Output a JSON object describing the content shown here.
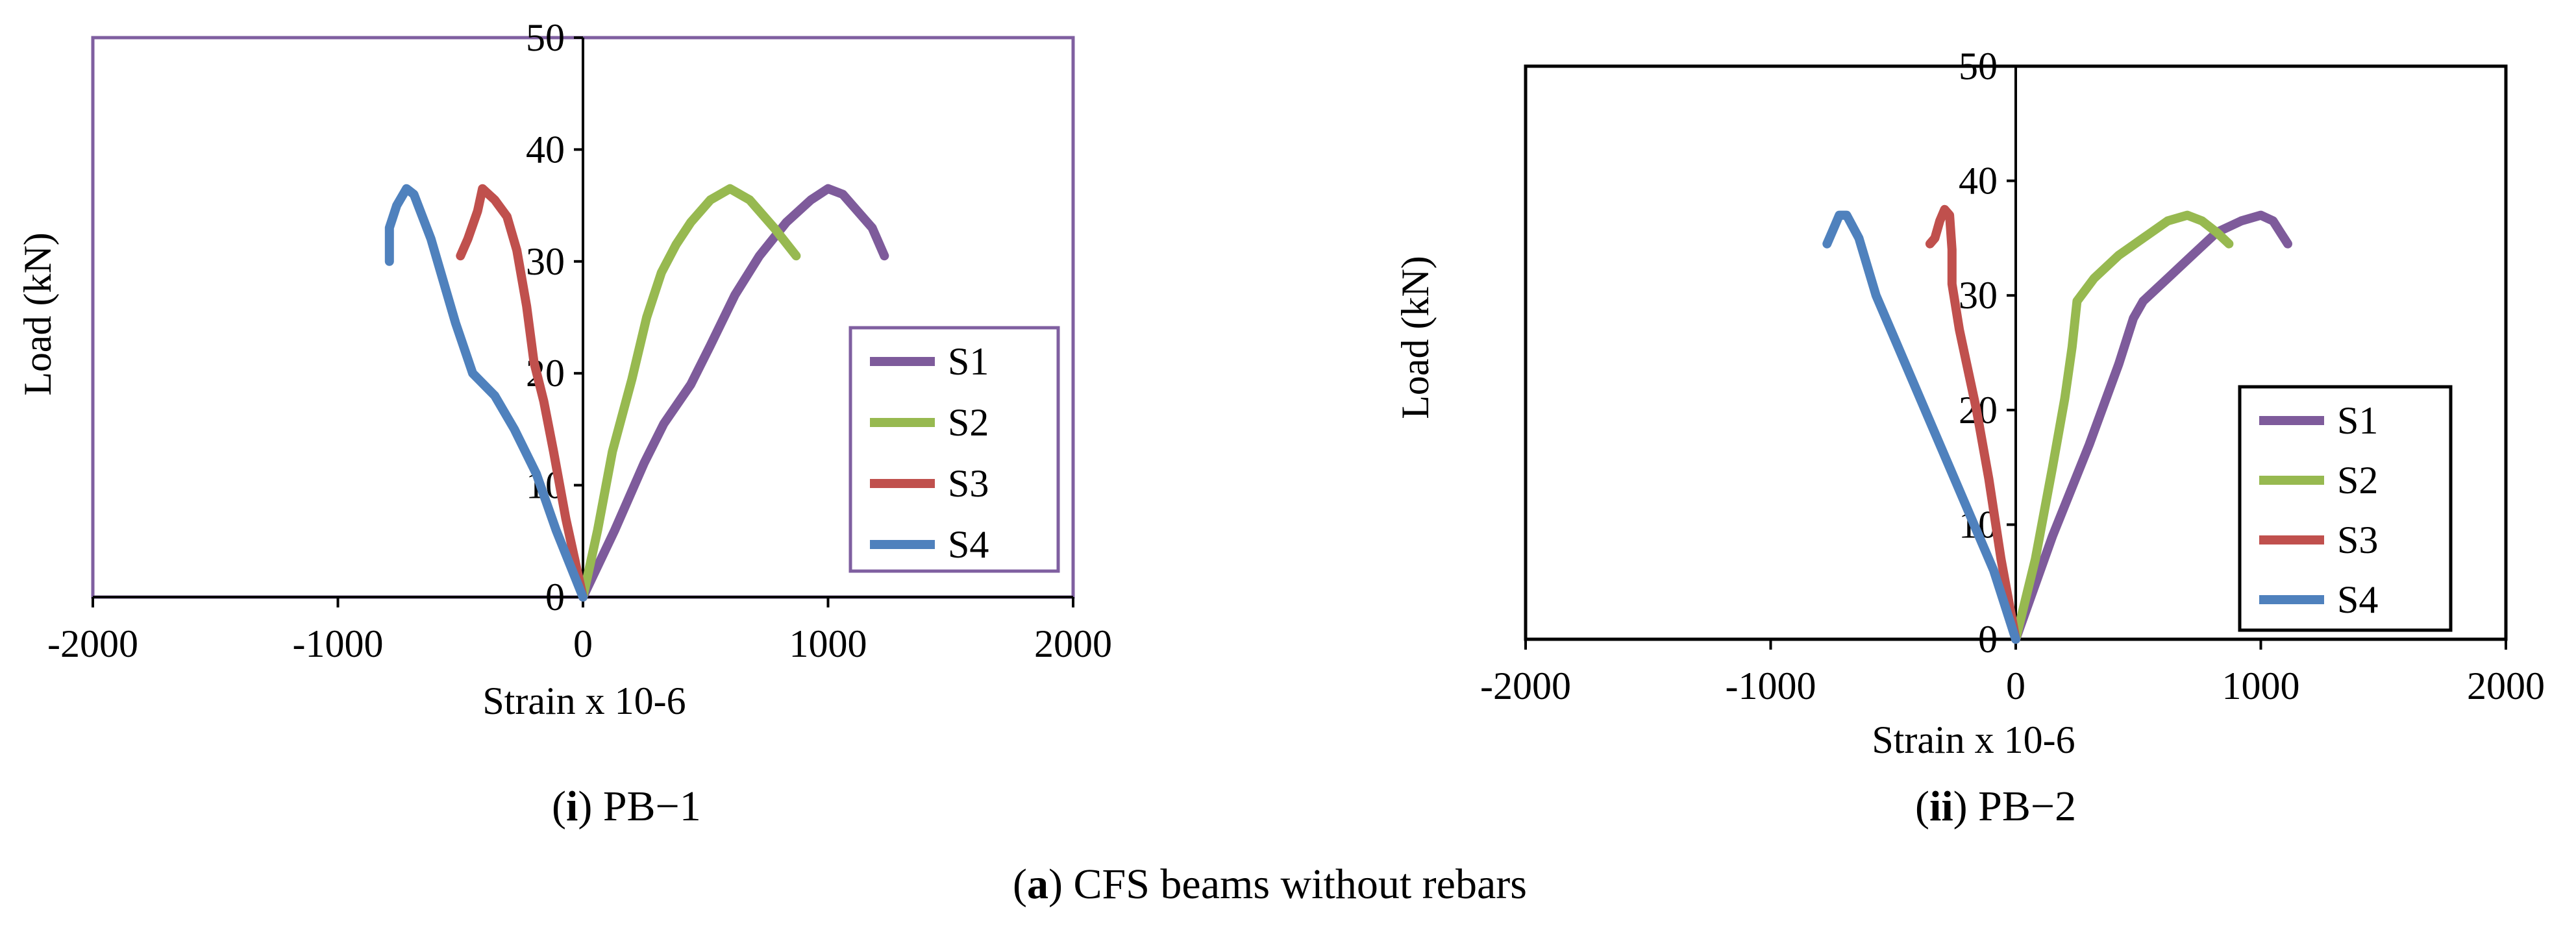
{
  "captions": {
    "panel_i": {
      "letter": "i",
      "text": " PB−1"
    },
    "panel_ii": {
      "letter": "ii",
      "text": " PB−2"
    },
    "figure": {
      "letter": "a",
      "text": " CFS beams without rebars"
    }
  },
  "colors": {
    "S1": "#7e5b9b",
    "S2": "#97b950",
    "S3": "#c0504d",
    "S4": "#4f81bd"
  },
  "chart_data": [
    {
      "id": "PB-1",
      "type": "line",
      "xlabel": "Strain x 10-6",
      "ylabel": "Load (kN)",
      "xlim": [
        -2000,
        2000
      ],
      "ylim": [
        0,
        50
      ],
      "xticks": [
        -2000,
        -1000,
        0,
        1000,
        2000
      ],
      "yticks": [
        0,
        10,
        20,
        30,
        40,
        50
      ],
      "legend_position": "right",
      "series": [
        {
          "name": "S1",
          "color": "#7e5b9b",
          "points": [
            [
              0,
              0
            ],
            [
              130,
              6
            ],
            [
              250,
              12
            ],
            [
              330,
              15.5
            ],
            [
              440,
              19
            ],
            [
              520,
              22.5
            ],
            [
              620,
              27
            ],
            [
              720,
              30.5
            ],
            [
              830,
              33.5
            ],
            [
              930,
              35.5
            ],
            [
              1000,
              36.5
            ],
            [
              1060,
              36
            ],
            [
              1120,
              34.5
            ],
            [
              1180,
              33
            ],
            [
              1230,
              30.5
            ]
          ]
        },
        {
          "name": "S2",
          "color": "#97b950",
          "points": [
            [
              0,
              0
            ],
            [
              60,
              6
            ],
            [
              120,
              13
            ],
            [
              200,
              19.5
            ],
            [
              260,
              25
            ],
            [
              320,
              29
            ],
            [
              380,
              31.5
            ],
            [
              440,
              33.5
            ],
            [
              520,
              35.5
            ],
            [
              600,
              36.5
            ],
            [
              680,
              35.5
            ],
            [
              780,
              33
            ],
            [
              870,
              30.5
            ]
          ]
        },
        {
          "name": "S3",
          "color": "#c0504d",
          "points": [
            [
              0,
              0
            ],
            [
              -70,
              7
            ],
            [
              -120,
              13
            ],
            [
              -160,
              17.5
            ],
            [
              -200,
              21
            ],
            [
              -230,
              26
            ],
            [
              -270,
              31
            ],
            [
              -310,
              34
            ],
            [
              -360,
              35.5
            ],
            [
              -410,
              36.5
            ],
            [
              -430,
              34.5
            ],
            [
              -470,
              32
            ],
            [
              -500,
              30.5
            ]
          ]
        },
        {
          "name": "S4",
          "color": "#4f81bd",
          "points": [
            [
              0,
              0
            ],
            [
              -110,
              6
            ],
            [
              -190,
              11
            ],
            [
              -280,
              15
            ],
            [
              -360,
              18
            ],
            [
              -450,
              20
            ],
            [
              -520,
              24.5
            ],
            [
              -580,
              29
            ],
            [
              -620,
              32
            ],
            [
              -690,
              36
            ],
            [
              -720,
              36.5
            ],
            [
              -760,
              35
            ],
            [
              -790,
              33
            ],
            [
              -790,
              31
            ],
            [
              -790,
              30
            ]
          ]
        }
      ]
    },
    {
      "id": "PB-2",
      "type": "line",
      "xlabel": "Strain x 10-6",
      "ylabel": "Load (kN)",
      "xlim": [
        -2000,
        2000
      ],
      "ylim": [
        0,
        50
      ],
      "xticks": [
        -2000,
        -1000,
        0,
        1000,
        2000
      ],
      "yticks": [
        0,
        10,
        20,
        30,
        40,
        50
      ],
      "legend_position": "lower-right",
      "series": [
        {
          "name": "S1",
          "color": "#7e5b9b",
          "points": [
            [
              0,
              0
            ],
            [
              150,
              9
            ],
            [
              300,
              17
            ],
            [
              420,
              24
            ],
            [
              480,
              28
            ],
            [
              520,
              29.5
            ],
            [
              620,
              31.5
            ],
            [
              720,
              33.5
            ],
            [
              820,
              35.5
            ],
            [
              920,
              36.5
            ],
            [
              1000,
              37
            ],
            [
              1050,
              36.5
            ],
            [
              1080,
              35.5
            ],
            [
              1110,
              34.5
            ]
          ]
        },
        {
          "name": "S2",
          "color": "#97b950",
          "points": [
            [
              0,
              0
            ],
            [
              80,
              7
            ],
            [
              150,
              15
            ],
            [
              200,
              21
            ],
            [
              230,
              25.5
            ],
            [
              250,
              29.5
            ],
            [
              320,
              31.5
            ],
            [
              420,
              33.5
            ],
            [
              520,
              35
            ],
            [
              620,
              36.5
            ],
            [
              700,
              37
            ],
            [
              760,
              36.5
            ],
            [
              820,
              35.5
            ],
            [
              870,
              34.5
            ]
          ]
        },
        {
          "name": "S3",
          "color": "#c0504d",
          "points": [
            [
              0,
              0
            ],
            [
              -60,
              7
            ],
            [
              -110,
              14
            ],
            [
              -160,
              20
            ],
            [
              -200,
              24
            ],
            [
              -230,
              27
            ],
            [
              -260,
              31
            ],
            [
              -260,
              34
            ],
            [
              -270,
              37
            ],
            [
              -290,
              37.5
            ],
            [
              -310,
              36.5
            ],
            [
              -330,
              35
            ],
            [
              -350,
              34.5
            ]
          ]
        },
        {
          "name": "S4",
          "color": "#4f81bd",
          "points": [
            [
              0,
              0
            ],
            [
              -90,
              6
            ],
            [
              -170,
              10
            ],
            [
              -270,
              15
            ],
            [
              -370,
              20
            ],
            [
              -470,
              25
            ],
            [
              -570,
              30
            ],
            [
              -640,
              35
            ],
            [
              -690,
              37
            ],
            [
              -720,
              37
            ],
            [
              -740,
              36
            ],
            [
              -760,
              35
            ],
            [
              -770,
              34.5
            ]
          ]
        }
      ]
    }
  ]
}
